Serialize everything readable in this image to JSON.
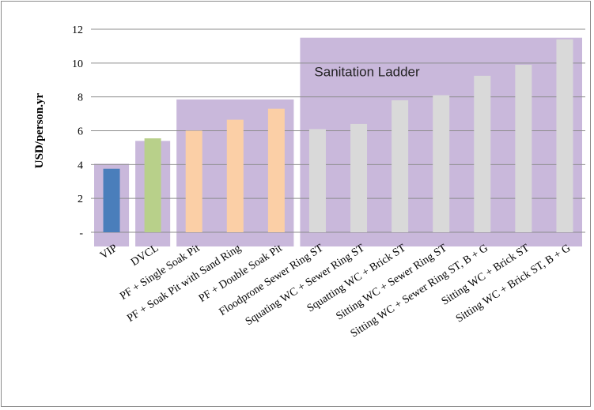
{
  "chart_data": {
    "type": "bar",
    "ylabel": "USD/person.yr",
    "xlabel": "",
    "title": "",
    "ylim": [
      0,
      12
    ],
    "yticks": [
      {
        "value": 0,
        "label": "-"
      },
      {
        "value": 2,
        "label": "2"
      },
      {
        "value": 4,
        "label": "4"
      },
      {
        "value": 6,
        "label": "6"
      },
      {
        "value": 8,
        "label": "8"
      },
      {
        "value": 10,
        "label": "10"
      },
      {
        "value": 12,
        "label": "12"
      }
    ],
    "grid": true,
    "categories": [
      "VIP",
      "DVCL",
      "PF + Single Soak Pit",
      "PF + Soak Pit with Sand Ring",
      "PF + Double Soak Pit",
      "Floodprone Sewer Ring ST",
      "Squating WC + Sewer Ring ST",
      "Squatting WC + Brick ST",
      "Sitting WC + Sewer Ring ST",
      "Sitting WC + Sewer Ring ST, B + G",
      "Sitting WC + Brick ST",
      "Sitting WC + Brick ST, B + G"
    ],
    "values": [
      3.75,
      5.55,
      6.0,
      6.65,
      7.3,
      6.1,
      6.4,
      7.8,
      8.1,
      9.25,
      9.9,
      11.4
    ],
    "bar_colors": [
      "#4a7ebb",
      "#b8d08a",
      "#fbcfa6",
      "#fbcfa6",
      "#fbcfa6",
      "#d9d9d9",
      "#d9d9d9",
      "#d9d9d9",
      "#d9d9d9",
      "#d9d9d9",
      "#d9d9d9",
      "#d9d9d9"
    ],
    "bands": [
      {
        "from": 0,
        "to": 0,
        "top": 4.05
      },
      {
        "from": 1,
        "to": 1,
        "top": 5.4
      },
      {
        "from": 2,
        "to": 4,
        "top": 7.85
      },
      {
        "from": 5,
        "to": 11,
        "top": 11.5
      }
    ],
    "band_color": "#c9b8db",
    "annotation": "Sanitation Ladder"
  }
}
